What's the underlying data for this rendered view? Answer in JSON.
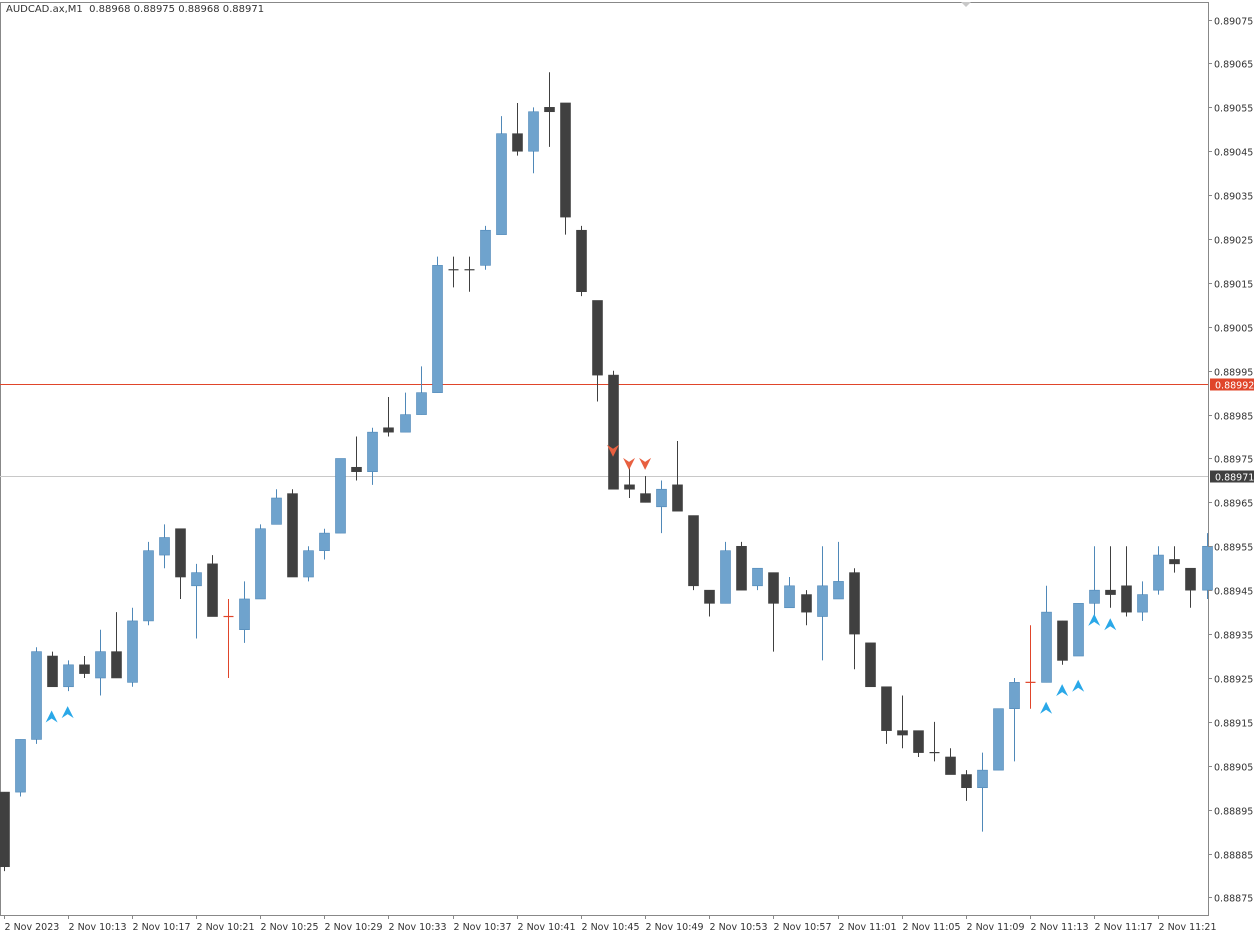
{
  "header": {
    "symbol": "AUDCAD.ax,M1",
    "ohlc": "0.88968 0.88975 0.88968 0.88971"
  },
  "colors": {
    "bull": "#6fa3cd",
    "bull_border": "#4f88b8",
    "bear": "#404040",
    "doji_cross": "#e0452a",
    "price_line": "#e0452a",
    "bid_line": "#c8c8c8",
    "arrow_up": "#2aa8e8",
    "arrow_down": "#e86040",
    "frame": "#888888"
  },
  "chart_data": {
    "type": "candlestick",
    "title": "AUDCAD.ax,M1",
    "ylim": [
      0.88871,
      0.89079
    ],
    "y_ticks": [
      "0.89075",
      "0.89065",
      "0.89055",
      "0.89045",
      "0.89035",
      "0.89025",
      "0.89015",
      "0.89005",
      "0.88995",
      "0.88985",
      "0.88975",
      "0.88965",
      "0.88955",
      "0.88945",
      "0.88935",
      "0.88925",
      "0.88915",
      "0.88905",
      "0.88895",
      "0.88885",
      "0.88875"
    ],
    "x_labels": [
      "2 Nov 2023",
      "2 Nov 10:13",
      "2 Nov 10:17",
      "2 Nov 10:21",
      "2 Nov 10:25",
      "2 Nov 10:29",
      "2 Nov 10:33",
      "2 Nov 10:37",
      "2 Nov 10:41",
      "2 Nov 10:45",
      "2 Nov 10:49",
      "2 Nov 10:53",
      "2 Nov 10:57",
      "2 Nov 11:01",
      "2 Nov 11:05",
      "2 Nov 11:09",
      "2 Nov 11:13",
      "2 Nov 11:17",
      "2 Nov 11:21"
    ],
    "horizontal_lines": [
      {
        "price": 0.88992,
        "label": "0.88992",
        "kind": "price"
      },
      {
        "price": 0.88971,
        "label": "0.88971",
        "kind": "bid"
      }
    ],
    "candles": [
      [
        0.88899,
        0.88882,
        0.88899,
        0.88881
      ],
      [
        0.88899,
        0.88911,
        0.88911,
        0.88898
      ],
      [
        0.88911,
        0.88931,
        0.88932,
        0.8891
      ],
      [
        0.8893,
        0.88923,
        0.88931,
        0.88923
      ],
      [
        0.88923,
        0.88928,
        0.88929,
        0.88922
      ],
      [
        0.88928,
        0.88926,
        0.8893,
        0.88925
      ],
      [
        0.88925,
        0.88931,
        0.88936,
        0.88921
      ],
      [
        0.88931,
        0.88925,
        0.8894,
        0.88925
      ],
      [
        0.88924,
        0.88938,
        0.88941,
        0.88923
      ],
      [
        0.88938,
        0.88954,
        0.88956,
        0.88937
      ],
      [
        0.88953,
        0.88957,
        0.8896,
        0.8895
      ],
      [
        0.88959,
        0.88948,
        0.88959,
        0.88943
      ],
      [
        0.88946,
        0.88949,
        0.88951,
        0.88934
      ],
      [
        0.88951,
        0.88939,
        0.88953,
        0.88939
      ],
      [
        0.88939,
        0.88939,
        0.88943,
        0.88925
      ],
      [
        0.88936,
        0.88943,
        0.88947,
        0.88933
      ],
      [
        0.88943,
        0.88959,
        0.8896,
        0.88943
      ],
      [
        0.8896,
        0.88966,
        0.88968,
        0.8896
      ],
      [
        0.88967,
        0.88948,
        0.88968,
        0.88948
      ],
      [
        0.88948,
        0.88954,
        0.88955,
        0.88947
      ],
      [
        0.88954,
        0.88958,
        0.88959,
        0.88952
      ],
      [
        0.88958,
        0.88975,
        0.88975,
        0.88958
      ],
      [
        0.88973,
        0.88972,
        0.8898,
        0.8897
      ],
      [
        0.88972,
        0.88981,
        0.88982,
        0.88969
      ],
      [
        0.88982,
        0.88981,
        0.88989,
        0.8898
      ],
      [
        0.88981,
        0.88985,
        0.8899,
        0.88981
      ],
      [
        0.88985,
        0.8899,
        0.88996,
        0.88985
      ],
      [
        0.8899,
        0.89019,
        0.89021,
        0.8899
      ],
      [
        0.89018,
        0.89018,
        0.89021,
        0.89014
      ],
      [
        0.89018,
        0.89018,
        0.89021,
        0.89013
      ],
      [
        0.89019,
        0.89027,
        0.89028,
        0.89018
      ],
      [
        0.89026,
        0.89049,
        0.89053,
        0.89026
      ],
      [
        0.89049,
        0.89045,
        0.89056,
        0.89044
      ],
      [
        0.89045,
        0.89054,
        0.89055,
        0.8904
      ],
      [
        0.89055,
        0.89054,
        0.89063,
        0.89046
      ],
      [
        0.89056,
        0.8903,
        0.89056,
        0.89026
      ],
      [
        0.89027,
        0.89013,
        0.89028,
        0.89012
      ],
      [
        0.89011,
        0.88994,
        0.89011,
        0.88988
      ],
      [
        0.88994,
        0.88968,
        0.88995,
        0.88968
      ],
      [
        0.88969,
        0.88968,
        0.88973,
        0.88966
      ],
      [
        0.88967,
        0.88965,
        0.88971,
        0.88965
      ],
      [
        0.88964,
        0.88968,
        0.8897,
        0.88958
      ],
      [
        0.88969,
        0.88963,
        0.88979,
        0.88963
      ],
      [
        0.88962,
        0.88946,
        0.88962,
        0.88945
      ],
      [
        0.88945,
        0.88942,
        0.88945,
        0.88939
      ],
      [
        0.88942,
        0.88954,
        0.88956,
        0.88942
      ],
      [
        0.88955,
        0.88945,
        0.88956,
        0.88945
      ],
      [
        0.88946,
        0.8895,
        0.8895,
        0.88945
      ],
      [
        0.88949,
        0.88942,
        0.88949,
        0.88931
      ],
      [
        0.88941,
        0.88946,
        0.88948,
        0.88941
      ],
      [
        0.88944,
        0.8894,
        0.88945,
        0.88937
      ],
      [
        0.88939,
        0.88946,
        0.88955,
        0.88929
      ],
      [
        0.88943,
        0.88947,
        0.88956,
        0.88943
      ],
      [
        0.88949,
        0.88935,
        0.8895,
        0.88927
      ],
      [
        0.88933,
        0.88923,
        0.88933,
        0.88923
      ],
      [
        0.88923,
        0.88913,
        0.88923,
        0.8891
      ],
      [
        0.88913,
        0.88912,
        0.88921,
        0.88909
      ],
      [
        0.88913,
        0.88908,
        0.88913,
        0.88907
      ],
      [
        0.88908,
        0.88908,
        0.88915,
        0.88906
      ],
      [
        0.88907,
        0.88903,
        0.88909,
        0.88903
      ],
      [
        0.88903,
        0.889,
        0.88904,
        0.88897
      ],
      [
        0.889,
        0.88904,
        0.88908,
        0.8889
      ],
      [
        0.88904,
        0.88918,
        0.88918,
        0.88904
      ],
      [
        0.88918,
        0.88924,
        0.88925,
        0.88906
      ],
      [
        0.88924,
        0.88924,
        0.88937,
        0.88918
      ],
      [
        0.88924,
        0.8894,
        0.88946,
        0.88924
      ],
      [
        0.88938,
        0.88929,
        0.88938,
        0.88928
      ],
      [
        0.8893,
        0.88942,
        0.88942,
        0.8893
      ],
      [
        0.88942,
        0.88945,
        0.88955,
        0.88938
      ],
      [
        0.88945,
        0.88944,
        0.88955,
        0.88941
      ],
      [
        0.88946,
        0.8894,
        0.88955,
        0.88939
      ],
      [
        0.8894,
        0.88944,
        0.88947,
        0.88938
      ],
      [
        0.88945,
        0.88953,
        0.88955,
        0.88944
      ],
      [
        0.88952,
        0.88951,
        0.88955,
        0.88949
      ],
      [
        0.8895,
        0.88945,
        0.8895,
        0.88941
      ],
      [
        0.88945,
        0.88955,
        0.88958,
        0.88943
      ]
    ],
    "up_arrows": [
      [
        3,
        0.88916
      ],
      [
        4,
        0.88917
      ],
      [
        65,
        0.88918
      ],
      [
        66,
        0.88922
      ],
      [
        67,
        0.88923
      ],
      [
        68,
        0.88938
      ],
      [
        69,
        0.88937
      ]
    ],
    "down_arrows": [
      [
        38,
        0.88977
      ],
      [
        39,
        0.88974
      ],
      [
        40,
        0.88974
      ]
    ]
  }
}
